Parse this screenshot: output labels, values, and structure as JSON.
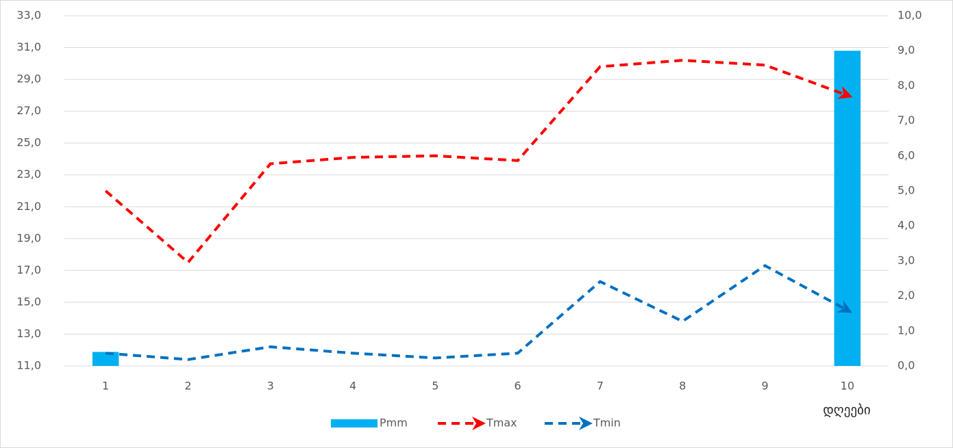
{
  "chart_data": {
    "type": "combo",
    "categories": [
      "1",
      "2",
      "3",
      "4",
      "5",
      "6",
      "7",
      "8",
      "9",
      "10"
    ],
    "x_label": "დღეები",
    "series": [
      {
        "name": "Pmm",
        "type": "bar",
        "axis": "y2",
        "color": "#00b0f0",
        "values": [
          0.4,
          0,
          0,
          0,
          0,
          0,
          0,
          0,
          0,
          9.0
        ]
      },
      {
        "name": "Tmax",
        "type": "line",
        "color": "#ff0000",
        "values": [
          22.0,
          17.5,
          23.7,
          24.1,
          24.2,
          23.9,
          29.8,
          30.2,
          29.9,
          28.0
        ]
      },
      {
        "name": "Tmin",
        "type": "line",
        "color": "#0070c0",
        "values": [
          11.8,
          11.4,
          12.2,
          11.8,
          11.5,
          11.8,
          16.3,
          13.8,
          17.3,
          14.5
        ]
      }
    ],
    "ylim": [
      11,
      33
    ],
    "yticks": [
      {
        "value": 11,
        "label": "11,0"
      },
      {
        "value": 13,
        "label": "13,0"
      },
      {
        "value": 15,
        "label": "15,0"
      },
      {
        "value": 17,
        "label": "17,0"
      },
      {
        "value": 19,
        "label": "19,0"
      },
      {
        "value": 21,
        "label": "21,0"
      },
      {
        "value": 23,
        "label": "23,0"
      },
      {
        "value": 25,
        "label": "25,0"
      },
      {
        "value": 27,
        "label": "27,0"
      },
      {
        "value": 29,
        "label": "29,0"
      },
      {
        "value": 31,
        "label": "31,0"
      },
      {
        "value": 33,
        "label": "33,0"
      }
    ],
    "y2lim": [
      0,
      10
    ],
    "y2ticks": [
      {
        "value": 0,
        "label": "0,0"
      },
      {
        "value": 1,
        "label": "1,0"
      },
      {
        "value": 2,
        "label": "2,0"
      },
      {
        "value": 3,
        "label": "3,0"
      },
      {
        "value": 4,
        "label": "4,0"
      },
      {
        "value": 5,
        "label": "5,0"
      },
      {
        "value": 6,
        "label": "6,0"
      },
      {
        "value": 7,
        "label": "7,0"
      },
      {
        "value": 8,
        "label": "8,0"
      },
      {
        "value": 9,
        "label": "9,0"
      },
      {
        "value": 10,
        "label": "10,0"
      }
    ],
    "grid": true,
    "legend": "bottom"
  }
}
